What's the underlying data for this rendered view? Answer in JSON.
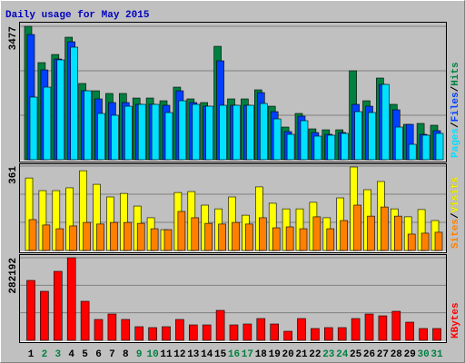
{
  "chart_data": [
    {
      "type": "bar",
      "title": "Daily usage for May 2015",
      "ylim": [
        0,
        3477
      ],
      "yticks": [
        3477
      ],
      "grid": true,
      "legend_separator": "/",
      "series": [
        {
          "name": "Hits",
          "color": "#008040",
          "values": [
            3477,
            2531,
            2743,
            3193,
            1987,
            1797,
            1727,
            1727,
            1608,
            1608,
            1537,
            1892,
            1585,
            1490,
            2956,
            1585,
            1585,
            1821,
            1395,
            851,
            1206,
            804,
            780,
            780,
            2318,
            1537,
            2129,
            1443,
            922,
            946,
            899
          ]
        },
        {
          "name": "Files",
          "color": "#0040ff",
          "values": [
            3264,
            2341,
            2625,
            3075,
            1797,
            1585,
            1490,
            1490,
            1443,
            1443,
            1419,
            1797,
            1490,
            1395,
            2578,
            1419,
            1419,
            1750,
            1253,
            733,
            1135,
            709,
            662,
            709,
            1443,
            1395,
            1963,
            1301,
            922,
            662,
            757
          ]
        },
        {
          "name": "Pages",
          "color": "#00e0ff",
          "values": [
            1632,
            1892,
            2602,
            2933,
            1797,
            1206,
            1159,
            1395,
            1443,
            1443,
            1230,
            1537,
            1443,
            1395,
            1419,
            1419,
            1419,
            1466,
            1064,
            662,
            1017,
            615,
            639,
            686,
            1253,
            1230,
            1963,
            851,
            402,
            639,
            686
          ]
        }
      ]
    },
    {
      "type": "bar",
      "ylim": [
        0,
        361
      ],
      "yticks": [
        361
      ],
      "grid": true,
      "legend_separator": "/",
      "series": [
        {
          "name": "Visits",
          "color": "#ffff00",
          "values": [
            310,
            256,
            256,
            268,
            341,
            283,
            229,
            244,
            190,
            140,
            89,
            248,
            252,
            194,
            178,
            229,
            151,
            272,
            202,
            178,
            178,
            206,
            140,
            225,
            357,
            260,
            295,
            178,
            144,
            175,
            128
          ]
        },
        {
          "name": "Sites",
          "color": "#ff8000",
          "values": [
            132,
            109,
            93,
            105,
            120,
            113,
            120,
            120,
            116,
            93,
            89,
            167,
            140,
            116,
            113,
            120,
            113,
            140,
            97,
            101,
            93,
            144,
            93,
            128,
            194,
            147,
            186,
            147,
            70,
            74,
            78
          ]
        }
      ]
    },
    {
      "type": "bar",
      "ylim": [
        0,
        282192
      ],
      "yticks": [
        282192
      ],
      "grid": true,
      "categories": [
        "1",
        "2",
        "3",
        "4",
        "5",
        "6",
        "7",
        "8",
        "9",
        "10",
        "11",
        "12",
        "13",
        "14",
        "15",
        "16",
        "17",
        "18",
        "19",
        "20",
        "21",
        "22",
        "23",
        "24",
        "25",
        "26",
        "27",
        "28",
        "29",
        "30",
        "31"
      ],
      "label_colors": [
        "#000000",
        "#008040",
        "#008040",
        "#000000",
        "#000000",
        "#000000",
        "#000000",
        "#000000",
        "#008040",
        "#008040",
        "#000000",
        "#000000",
        "#000000",
        "#000000",
        "#000000",
        "#008040",
        "#008040",
        "#000000",
        "#000000",
        "#000000",
        "#000000",
        "#000000",
        "#008040",
        "#008040",
        "#000000",
        "#000000",
        "#000000",
        "#000000",
        "#000000",
        "#008040",
        "#008040"
      ],
      "series": [
        {
          "name": "KBytes",
          "color": "#ff0000",
          "values": [
            204666,
            167454,
            235676,
            282192,
            133343,
            71323,
            89929,
            71323,
            46515,
            43414,
            46515,
            71323,
            52717,
            52717,
            102333,
            52717,
            55818,
            74424,
            55818,
            31010,
            74424,
            40313,
            43414,
            43414,
            74424,
            89929,
            83727,
            99232,
            62020,
            40313,
            40313
          ]
        }
      ]
    }
  ]
}
